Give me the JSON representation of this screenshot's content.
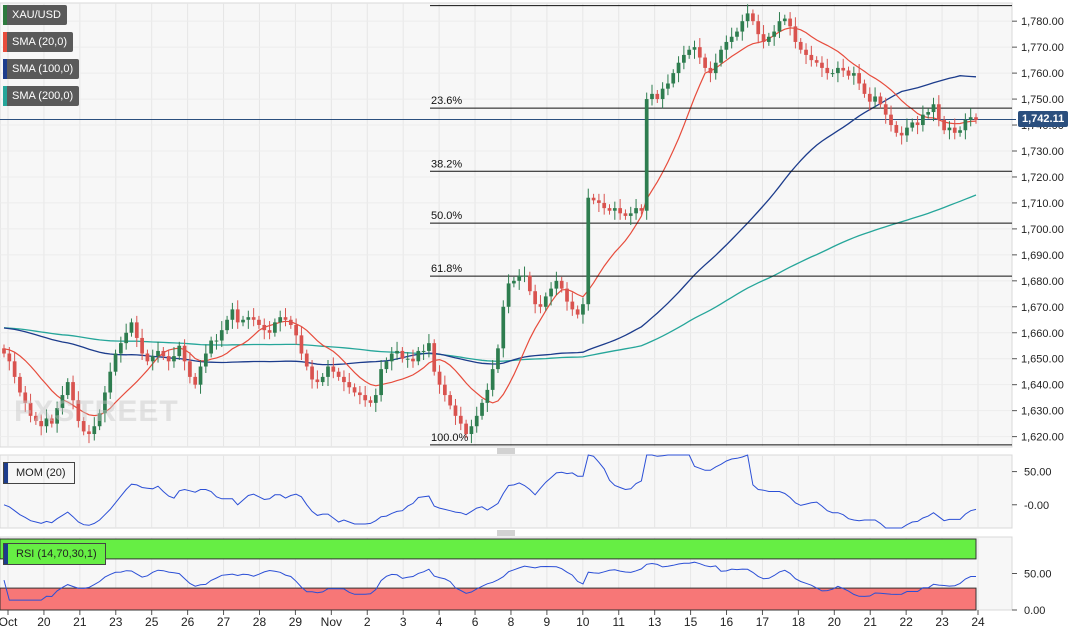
{
  "indicators": [
    {
      "label": "XAU/USD",
      "color": "#2d7a3e"
    },
    {
      "label": "SMA (20,0)",
      "color": "#e74c3c"
    },
    {
      "label": "SMA (100,0)",
      "color": "#1c3c8c"
    },
    {
      "label": "SMA (200,0)",
      "color": "#26a69a"
    }
  ],
  "last_price_label": "1,742.11",
  "watermark": "FXSTREET",
  "mom_label": "MOM (20)",
  "rsi_label": "RSI (14,70,30,1)",
  "chart_data": [
    {
      "type": "candlestick",
      "title": "XAU/USD",
      "x_tick_labels": [
        "Oct",
        "20",
        "21",
        "23",
        "25",
        "26",
        "27",
        "28",
        "29",
        "Nov",
        "2",
        "3",
        "4",
        "6",
        "8",
        "9",
        "10",
        "11",
        "13",
        "15",
        "16",
        "17",
        "18",
        "20",
        "21",
        "22",
        "23",
        "24"
      ],
      "y_tick_labels": [
        "1,620.00",
        "1,630.00",
        "1,640.00",
        "1,650.00",
        "1,660.00",
        "1,670.00",
        "1,680.00",
        "1,690.00",
        "1,700.00",
        "1,710.00",
        "1,720.00",
        "1,730.00",
        "1,740.00",
        "1,750.00",
        "1,760.00",
        "1,770.00",
        "1,780.00"
      ],
      "ylim": [
        1616,
        1787
      ],
      "last_price": 1742.11,
      "fibonacci": [
        {
          "label": "23.6%",
          "price": 1746.5
        },
        {
          "label": "38.2%",
          "price": 1722.2
        },
        {
          "label": "50.0%",
          "price": 1702.2
        },
        {
          "label": "61.8%",
          "price": 1681.8
        },
        {
          "label": "100.0%",
          "price": 1616.8
        }
      ],
      "swing_high": 1786.0,
      "closes": [
        1652,
        1649,
        1643,
        1637,
        1633,
        1628,
        1626,
        1624,
        1627,
        1625,
        1631,
        1636,
        1641,
        1634,
        1626,
        1622,
        1621,
        1624,
        1629,
        1637,
        1645,
        1652,
        1656,
        1660,
        1664,
        1658,
        1652,
        1649,
        1651,
        1653,
        1651,
        1649,
        1651,
        1655,
        1649,
        1643,
        1640,
        1647,
        1652,
        1657,
        1657,
        1661,
        1665,
        1669,
        1664,
        1665,
        1666,
        1665,
        1663,
        1661,
        1660,
        1664,
        1666,
        1665,
        1663,
        1659,
        1652,
        1647,
        1642,
        1641,
        1643,
        1647,
        1645,
        1643,
        1641,
        1639,
        1637,
        1636,
        1634,
        1633,
        1636,
        1646,
        1649,
        1652,
        1653,
        1650,
        1650,
        1649,
        1653,
        1653,
        1656,
        1645,
        1640,
        1636,
        1632,
        1628,
        1625,
        1621,
        1624,
        1628,
        1633,
        1638,
        1646,
        1654,
        1670,
        1679,
        1680,
        1682,
        1682,
        1676,
        1671,
        1670,
        1674,
        1677,
        1680,
        1677,
        1672,
        1669,
        1667,
        1671,
        1712,
        1711,
        1710,
        1708,
        1707,
        1708,
        1706,
        1705,
        1706,
        1708,
        1707,
        1750,
        1752,
        1750,
        1754,
        1756,
        1760,
        1764,
        1767,
        1769,
        1770,
        1766,
        1762,
        1760,
        1764,
        1769,
        1772,
        1774,
        1776,
        1780,
        1783,
        1780,
        1775,
        1772,
        1774,
        1776,
        1780,
        1781,
        1778,
        1772,
        1769,
        1767,
        1765,
        1764,
        1762,
        1760,
        1760,
        1762,
        1761,
        1759,
        1760,
        1756,
        1752,
        1749,
        1751,
        1748,
        1744,
        1740,
        1737,
        1736,
        1739,
        1741,
        1740,
        1744,
        1745,
        1748,
        1742,
        1738,
        1739,
        1737,
        1738,
        1742,
        1743,
        1742
      ]
    },
    {
      "type": "line",
      "title": "MOM (20)",
      "y_tick_labels": [
        "50.00",
        "-0.00"
      ],
      "ylim": [
        -35,
        75
      ]
    },
    {
      "type": "line",
      "title": "RSI (14,70,30,1)",
      "y_tick_labels": [
        "50.00",
        "0.00"
      ],
      "ylim": [
        0,
        100
      ],
      "overbought": 70,
      "oversold": 30
    }
  ]
}
